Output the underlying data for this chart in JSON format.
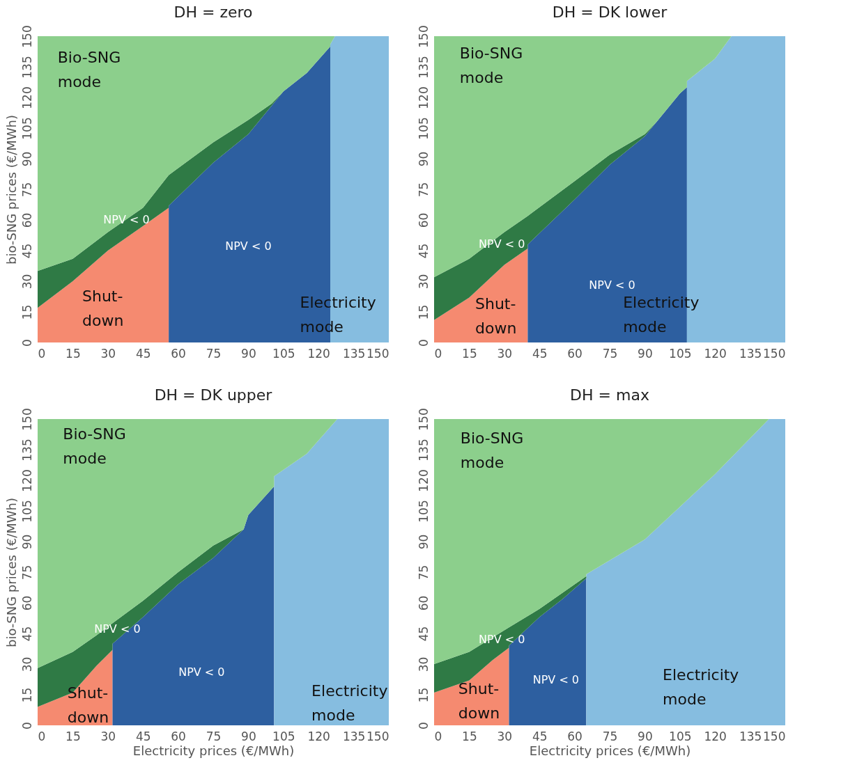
{
  "chart_data": [
    {
      "type": "area",
      "title": "DH = zero",
      "ylabel": "bio-SNG prices (€/MWh)",
      "xlim": [
        0,
        150
      ],
      "ylim": [
        0,
        150
      ],
      "xticks": [
        0,
        15,
        30,
        45,
        60,
        75,
        90,
        105,
        120,
        135,
        150
      ],
      "yticks": [
        0,
        15,
        30,
        45,
        60,
        75,
        90,
        105,
        120,
        135,
        150
      ],
      "stacked": true,
      "x": [
        0,
        15,
        30,
        45,
        56,
        56,
        75,
        90,
        100,
        105,
        115,
        125,
        125,
        127,
        150
      ],
      "series": [
        {
          "color": "#f58a70",
          "values": [
            17,
            30,
            45,
            57,
            66,
            0,
            0,
            0,
            0,
            0,
            0,
            0,
            0,
            0,
            0
          ]
        },
        {
          "color": "#2d5fa0",
          "values": [
            0,
            0,
            0,
            0,
            0,
            67,
            88,
            102,
            116,
            123,
            132,
            145,
            0,
            0,
            0
          ]
        },
        {
          "color": "#86bde0",
          "values": [
            0,
            0,
            0,
            0,
            0,
            0,
            0,
            0,
            0,
            0,
            0,
            0,
            146,
            150,
            150
          ]
        },
        {
          "color": "#2f7a45",
          "values": [
            18,
            11,
            9,
            9,
            16,
            15,
            10,
            7,
            1,
            0,
            0,
            0,
            0,
            0,
            0
          ]
        },
        {
          "color": "#8ccf8c",
          "values": [
            115,
            109,
            96,
            84,
            68,
            68,
            52,
            41,
            33,
            27,
            18,
            5,
            4,
            0,
            0
          ]
        }
      ],
      "annotations": [
        "Bio-SNG mode",
        "Shut-down",
        "Electricity mode",
        "NPV < 0",
        "NPV < 0"
      ]
    },
    {
      "type": "area",
      "title": "DH = DK lower",
      "xlim": [
        0,
        150
      ],
      "ylim": [
        0,
        150
      ],
      "xticks": [
        0,
        15,
        30,
        45,
        60,
        75,
        90,
        105,
        120,
        135,
        150
      ],
      "yticks": [
        0,
        15,
        30,
        45,
        60,
        75,
        90,
        105,
        120,
        135,
        150
      ],
      "stacked": true,
      "x": [
        0,
        15,
        30,
        40,
        40,
        60,
        75,
        90,
        95,
        105,
        108,
        108,
        120,
        127,
        150
      ],
      "series": [
        {
          "color": "#f58a70",
          "values": [
            11,
            22,
            38,
            46,
            0,
            0,
            0,
            0,
            0,
            0,
            0,
            0,
            0,
            0,
            0
          ]
        },
        {
          "color": "#2d5fa0",
          "values": [
            0,
            0,
            0,
            0,
            48,
            70,
            87,
            101,
            108,
            122,
            125,
            0,
            0,
            0,
            0
          ]
        },
        {
          "color": "#86bde0",
          "values": [
            0,
            0,
            0,
            0,
            0,
            0,
            0,
            0,
            0,
            0,
            0,
            128,
            139,
            150,
            150
          ]
        },
        {
          "color": "#2f7a45",
          "values": [
            21,
            19,
            16,
            16,
            14,
            9,
            5,
            1,
            0,
            0,
            0,
            0,
            0,
            0,
            0
          ]
        },
        {
          "color": "#8ccf8c",
          "values": [
            118,
            109,
            96,
            88,
            88,
            71,
            58,
            48,
            42,
            28,
            25,
            22,
            11,
            0,
            0
          ]
        }
      ],
      "annotations": [
        "Bio-SNG mode",
        "Shut-down",
        "Electricity mode",
        "NPV < 0",
        "NPV < 0"
      ]
    },
    {
      "type": "area",
      "title": "DH = DK upper",
      "xlabel": "Electricity prices (€/MWh)",
      "ylabel": "bio-SNG prices (€/MWh)",
      "xlim": [
        0,
        150
      ],
      "ylim": [
        0,
        150
      ],
      "xticks": [
        0,
        15,
        30,
        45,
        60,
        75,
        90,
        105,
        120,
        135,
        150
      ],
      "yticks": [
        0,
        15,
        30,
        45,
        60,
        75,
        90,
        105,
        120,
        135,
        150
      ],
      "stacked": true,
      "x": [
        0,
        15,
        25,
        32,
        32,
        45,
        60,
        75,
        88,
        90,
        101,
        101,
        115,
        128,
        150
      ],
      "series": [
        {
          "color": "#f58a70",
          "values": [
            9,
            16,
            29,
            37,
            0,
            0,
            0,
            0,
            0,
            0,
            0,
            0,
            0,
            0,
            0
          ]
        },
        {
          "color": "#2d5fa0",
          "values": [
            0,
            0,
            0,
            0,
            40,
            53,
            69,
            82,
            96,
            103,
            117,
            0,
            0,
            0,
            0
          ]
        },
        {
          "color": "#86bde0",
          "values": [
            0,
            0,
            0,
            0,
            0,
            0,
            0,
            0,
            0,
            0,
            0,
            122,
            133,
            150,
            150
          ]
        },
        {
          "color": "#2f7a45",
          "values": [
            19,
            20,
            15,
            13,
            10,
            8,
            6,
            6,
            0,
            0,
            0,
            0,
            0,
            0,
            0
          ]
        },
        {
          "color": "#8ccf8c",
          "values": [
            122,
            114,
            106,
            100,
            100,
            89,
            75,
            62,
            54,
            47,
            33,
            28,
            17,
            0,
            0
          ]
        }
      ],
      "annotations": [
        "Bio-SNG mode",
        "Shut-down",
        "Electricity mode",
        "NPV < 0",
        "NPV < 0"
      ]
    },
    {
      "type": "area",
      "title": "DH = max",
      "xlabel": "Electricity prices (€/MWh)",
      "xlim": [
        0,
        150
      ],
      "ylim": [
        0,
        150
      ],
      "xticks": [
        0,
        15,
        30,
        45,
        60,
        75,
        90,
        105,
        120,
        135,
        150
      ],
      "yticks": [
        0,
        15,
        30,
        45,
        60,
        75,
        90,
        105,
        120,
        135,
        150
      ],
      "stacked": true,
      "x": [
        0,
        15,
        25,
        32,
        32,
        45,
        55,
        60,
        65,
        65,
        90,
        120,
        143,
        150
      ],
      "series": [
        {
          "color": "#f58a70",
          "values": [
            16,
            22,
            32,
            38,
            0,
            0,
            0,
            0,
            0,
            0,
            0,
            0,
            0,
            0
          ]
        },
        {
          "color": "#2d5fa0",
          "values": [
            0,
            0,
            0,
            0,
            39,
            53,
            62,
            67,
            72,
            0,
            0,
            0,
            0,
            0
          ]
        },
        {
          "color": "#86bde0",
          "values": [
            0,
            0,
            0,
            0,
            0,
            0,
            0,
            0,
            0,
            74,
            91,
            123,
            150,
            150
          ]
        },
        {
          "color": "#2f7a45",
          "values": [
            14,
            14,
            11,
            10,
            9,
            4,
            3,
            2,
            1,
            0,
            0,
            0,
            0,
            0
          ]
        },
        {
          "color": "#8ccf8c",
          "values": [
            120,
            114,
            107,
            102,
            102,
            93,
            85,
            81,
            77,
            76,
            59,
            27,
            0,
            0
          ]
        }
      ],
      "annotations": [
        "Bio-SNG mode",
        "Shut-down",
        "Electricity mode",
        "NPV < 0",
        "NPV < 0"
      ]
    }
  ]
}
